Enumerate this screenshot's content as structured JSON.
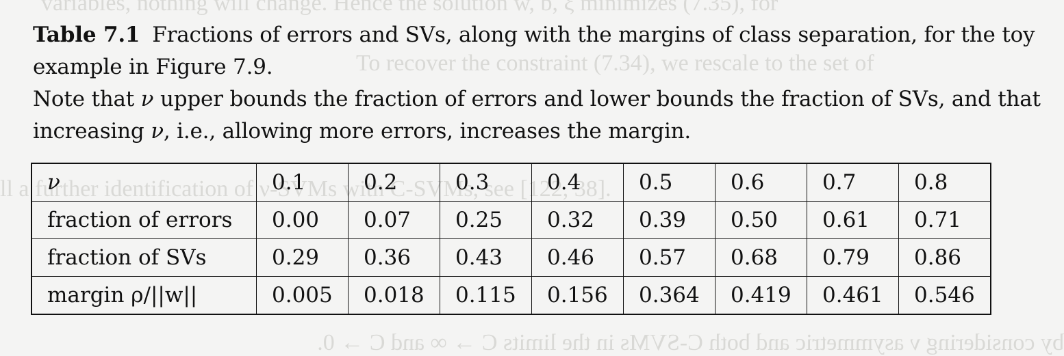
{
  "caption": {
    "label": "Table 7.1",
    "line1": "Fractions of errors and SVs, along with the margins of class separation, for the toy example in Figure 7.9.",
    "line2_prefix": "Note that ",
    "line2_symbol": "ν",
    "line2_mid": " upper bounds the fraction of errors and lower bounds the fraction of SVs, and that increasing ",
    "line2_symbol2": "ν",
    "line2_suffix": ", i.e., allowing more errors, increases the margin."
  },
  "table": {
    "rows": [
      {
        "label": "ν",
        "values": [
          "0.1",
          "0.2",
          "0.3",
          "0.4",
          "0.5",
          "0.6",
          "0.7",
          "0.8"
        ]
      },
      {
        "label": "fraction of errors",
        "values": [
          "0.00",
          "0.07",
          "0.25",
          "0.32",
          "0.39",
          "0.50",
          "0.61",
          "0.71"
        ]
      },
      {
        "label": "fraction of SVs",
        "values": [
          "0.29",
          "0.36",
          "0.43",
          "0.46",
          "0.57",
          "0.68",
          "0.79",
          "0.86"
        ]
      },
      {
        "label": "margin ρ/||w||",
        "values": [
          "0.005",
          "0.018",
          "0.115",
          "0.156",
          "0.364",
          "0.419",
          "0.461",
          "0.546"
        ]
      }
    ]
  }
}
